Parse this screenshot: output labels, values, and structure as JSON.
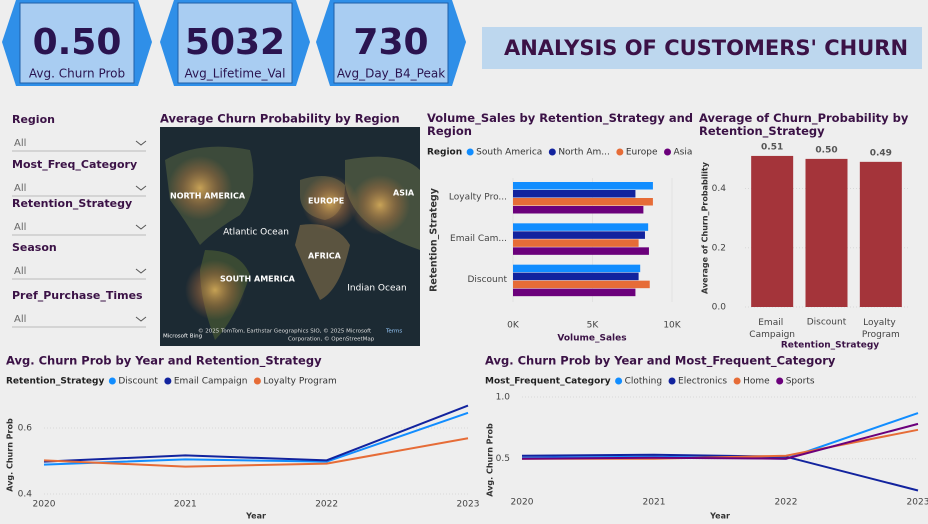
{
  "header": {
    "title": "ANALYSIS OF CUSTOMERS' CHURN"
  },
  "kpis": [
    {
      "value": "0.50",
      "label": "Avg. Churn Prob"
    },
    {
      "value": "5032",
      "label": "Avg_Lifetime_Val"
    },
    {
      "value": "730",
      "label": "Avg_Day_B4_Peak"
    }
  ],
  "slicers": [
    {
      "label": "Region",
      "value": "All"
    },
    {
      "label": "Most_Freq_Category",
      "value": "All"
    },
    {
      "label": "Retention_Strategy",
      "value": "All"
    },
    {
      "label": "Season",
      "value": "All"
    },
    {
      "label": "Pref_Purchase_Times",
      "value": "All"
    }
  ],
  "map": {
    "title": "Average Churn Probability by Region",
    "labels": [
      "NORTH AMERICA",
      "EUROPE",
      "ASIA",
      "Atlantic Ocean",
      "AFRICA",
      "SOUTH AMERICA",
      "Indian Ocean"
    ],
    "logo": "Microsoft Bing",
    "credits": [
      "© 2025 TomTom, Earthstar Geographics SIO, © 2025 Microsoft",
      "Terms",
      "Corporation, © OpenStreetMap"
    ]
  },
  "chart_data": [
    {
      "type": "hbar",
      "title": "Volume_Sales by Retention_Strategy and Region",
      "legend_title": "Region",
      "x_label": "Volume_Sales",
      "y_label": "Retention_Strategy",
      "categories": [
        "Loyalty Pro...",
        "Email Cam...",
        "Discount"
      ],
      "series": [
        {
          "name": "South America",
          "color": "#118DFF",
          "values": [
            8800,
            8500,
            8000
          ]
        },
        {
          "name": "North Am...",
          "color": "#12239E",
          "values": [
            7700,
            8300,
            7900
          ]
        },
        {
          "name": "Europe",
          "color": "#E66C37",
          "values": [
            8800,
            7900,
            8600
          ]
        },
        {
          "name": "Asia",
          "color": "#6B007B",
          "values": [
            8200,
            8550,
            7700
          ]
        }
      ],
      "xlim": [
        0,
        10000
      ],
      "xticks": [
        {
          "value": 0,
          "label": "0K"
        },
        {
          "value": 5000,
          "label": "5K"
        },
        {
          "value": 10000,
          "label": "10K"
        }
      ]
    },
    {
      "type": "bar",
      "title": "Average of Churn_Probability by Retention_Strategy",
      "x_label": "Retention_Strategy",
      "y_label": "Average of Churn_Probability",
      "categories": [
        "Email Campaign",
        "Discount",
        "Loyalty Program"
      ],
      "values": [
        0.51,
        0.5,
        0.49
      ],
      "value_labels": [
        "0.51",
        "0.50",
        "0.49"
      ],
      "color": "#A4343A",
      "ylim": [
        0,
        0.53
      ],
      "yticks": [
        {
          "value": 0,
          "label": "0.0"
        },
        0.2,
        0.4
      ]
    },
    {
      "type": "line",
      "title": "Avg. Churn Prob by Year and Retention_Strategy",
      "legend_title": "Retention_Strategy",
      "x_label": "Year",
      "y_label": "Avg. Churn Prob",
      "x": [
        2020,
        2021,
        2022,
        2023
      ],
      "series": [
        {
          "name": "Discount",
          "color": "#118DFF",
          "values": [
            0.489,
            0.505,
            0.498,
            0.646
          ]
        },
        {
          "name": "Email Campaign",
          "color": "#12239E",
          "values": [
            0.498,
            0.517,
            0.502,
            0.668
          ]
        },
        {
          "name": "Loyalty Program",
          "color": "#E66C37",
          "values": [
            0.502,
            0.483,
            0.492,
            0.569
          ]
        }
      ],
      "xlim": [
        2020,
        2023
      ],
      "xticks": [
        2020,
        2021,
        2022,
        2023
      ],
      "ylim": [
        0.4,
        0.7
      ],
      "yticks": [
        0.4,
        0.6
      ]
    },
    {
      "type": "line",
      "title": "Avg. Churn Prob by Year and Most_Frequent_Category",
      "legend_title": "Most_Frequent_Category",
      "x_label": "Year",
      "y_label": "Avg. Churn Prob",
      "x": [
        2020,
        2021,
        2022,
        2023
      ],
      "series": [
        {
          "name": "Clothing",
          "color": "#118DFF",
          "values": [
            0.508,
            0.516,
            0.5,
            0.87
          ]
        },
        {
          "name": "Electronics",
          "color": "#12239E",
          "values": [
            0.524,
            0.532,
            0.516,
            0.242
          ]
        },
        {
          "name": "Home",
          "color": "#E66C37",
          "values": [
            0.5,
            0.5,
            0.524,
            0.734
          ]
        },
        {
          "name": "Sports",
          "color": "#6B007B",
          "values": [
            0.5,
            0.508,
            0.5,
            0.782
          ]
        }
      ],
      "xlim": [
        2020,
        2023
      ],
      "xticks": [
        2020,
        2021,
        2022,
        2023
      ],
      "ylim": [
        0.23,
        1.0
      ],
      "yticks": [
        0.5,
        {
          "value": 1,
          "label": "1.0"
        }
      ]
    }
  ]
}
